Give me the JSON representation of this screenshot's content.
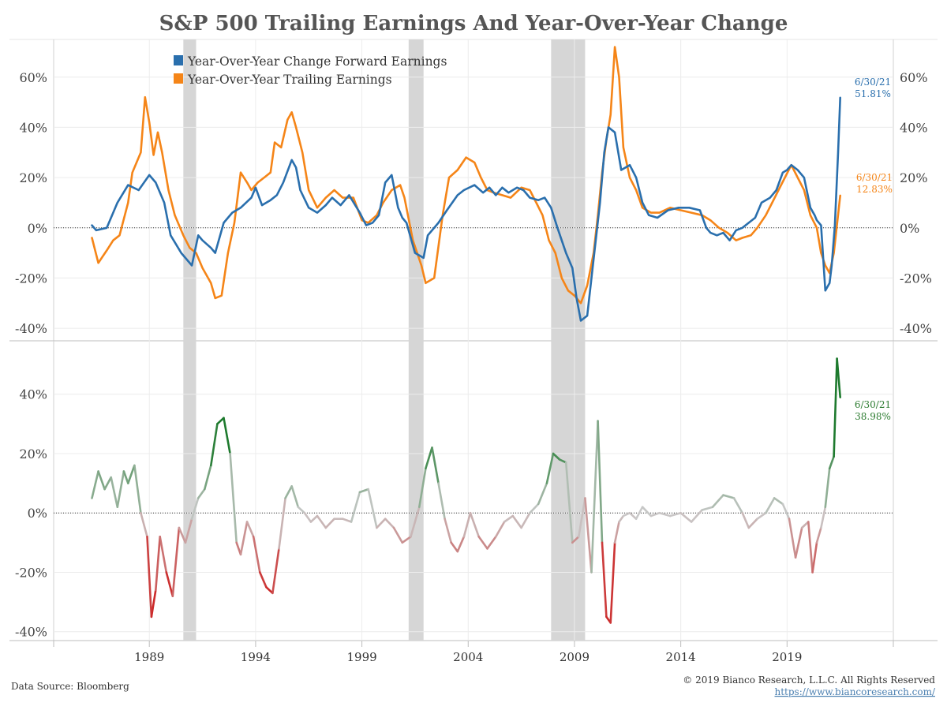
{
  "chart_data": [
    {
      "type": "line",
      "title": "S&P 500 Trailing Earnings And Year-Over-Year Change",
      "ylim": [
        -45,
        75
      ],
      "yticks": [
        -40,
        -20,
        0,
        20,
        40,
        60
      ],
      "yticklabels": [
        "-40%",
        "-20%",
        "0%",
        "20%",
        "40%",
        "60%"
      ],
      "xlim": [
        1984.5,
        2024
      ],
      "xticks": [
        1989,
        1994,
        1999,
        2004,
        2009,
        2014,
        2019
      ],
      "xticklabels": [
        "1989",
        "1994",
        "1999",
        "2004",
        "2009",
        "2014",
        "2019"
      ],
      "legend_position": "top-left",
      "recessions": [
        [
          1990.6,
          1991.2
        ],
        [
          2001.2,
          2001.9
        ],
        [
          2007.9,
          2009.5
        ]
      ],
      "series": [
        {
          "name": "Year-Over-Year Change Forward Earnings",
          "color": "#2a6fad",
          "x": [
            1986.3,
            1986.5,
            1987.0,
            1987.5,
            1988.0,
            1988.5,
            1989.0,
            1989.3,
            1989.7,
            1990.0,
            1990.5,
            1991.0,
            1991.3,
            1991.5,
            1991.9,
            1992.1,
            1992.5,
            1992.9,
            1993.3,
            1993.8,
            1994.0,
            1994.3,
            1994.7,
            1995.0,
            1995.3,
            1995.7,
            1995.9,
            1996.1,
            1996.5,
            1996.9,
            1997.3,
            1997.6,
            1998.0,
            1998.4,
            1998.9,
            1999.2,
            1999.5,
            1999.8,
            2000.1,
            2000.4,
            2000.7,
            2000.9,
            2001.1,
            2001.5,
            2001.9,
            2002.1,
            2002.6,
            2003.0,
            2003.5,
            2003.8,
            2004.3,
            2004.7,
            2005.0,
            2005.3,
            2005.6,
            2005.9,
            2006.3,
            2006.6,
            2006.9,
            2007.3,
            2007.6,
            2007.9,
            2008.2,
            2008.6,
            2008.9,
            2009.1,
            2009.3,
            2009.6,
            2009.8,
            2010.0,
            2010.2,
            2010.4,
            2010.6,
            2010.9,
            2011.2,
            2011.6,
            2011.9,
            2012.2,
            2012.5,
            2012.9,
            2013.4,
            2013.9,
            2014.4,
            2014.9,
            2015.2,
            2015.4,
            2015.7,
            2016.0,
            2016.3,
            2016.6,
            2016.9,
            2017.2,
            2017.5,
            2017.8,
            2018.2,
            2018.5,
            2018.8,
            2019.0,
            2019.2,
            2019.5,
            2019.8,
            2020.1,
            2020.3,
            2020.4,
            2020.6,
            2020.8,
            2021.0,
            2021.1,
            2021.25,
            2021.4,
            2021.5
          ],
          "values": [
            1,
            -1,
            0,
            10,
            17,
            15,
            21,
            18,
            10,
            -3,
            -10,
            -15,
            -3,
            -5,
            -8,
            -10,
            2,
            6,
            8,
            12,
            16,
            9,
            11,
            13,
            18,
            27,
            24,
            15,
            8,
            6,
            9,
            12,
            9,
            13,
            6,
            1,
            2,
            5,
            18,
            21,
            8,
            4,
            2,
            -10,
            -12,
            -3,
            2,
            7,
            13,
            15,
            17,
            14,
            16,
            13,
            16,
            14,
            16,
            15,
            12,
            11,
            12,
            8,
            0,
            -10,
            -16,
            -28,
            -37,
            -35,
            -20,
            -5,
            10,
            30,
            40,
            38,
            23,
            25,
            20,
            10,
            5,
            4,
            7,
            8,
            8,
            7,
            0,
            -2,
            -3,
            -2,
            -5,
            -1,
            0,
            2,
            4,
            10,
            12,
            15,
            22,
            23,
            25,
            23,
            20,
            8,
            5,
            3,
            1,
            -25,
            -22,
            -15,
            1,
            30,
            51.81
          ]
        },
        {
          "name": "Year-Over-Year Trailing Earnings",
          "color": "#f58518",
          "x": [
            1986.3,
            1986.6,
            1987.0,
            1987.3,
            1987.6,
            1988.0,
            1988.2,
            1988.6,
            1988.8,
            1989.0,
            1989.2,
            1989.4,
            1989.6,
            1989.9,
            1990.2,
            1990.6,
            1990.9,
            1991.2,
            1991.5,
            1991.9,
            1992.1,
            1992.4,
            1992.7,
            1993.0,
            1993.3,
            1993.6,
            1993.8,
            1994.1,
            1994.4,
            1994.7,
            1994.9,
            1995.2,
            1995.5,
            1995.7,
            1995.9,
            1996.2,
            1996.5,
            1996.9,
            1997.3,
            1997.7,
            1998.1,
            1998.6,
            1999.0,
            1999.3,
            1999.7,
            2000.0,
            2000.4,
            2000.8,
            2001.0,
            2001.4,
            2001.8,
            2002.0,
            2002.4,
            2002.8,
            2003.1,
            2003.5,
            2003.9,
            2004.3,
            2004.6,
            2004.9,
            2005.2,
            2005.6,
            2006.0,
            2006.5,
            2006.9,
            2007.2,
            2007.5,
            2007.8,
            2008.1,
            2008.4,
            2008.7,
            2009.0,
            2009.3,
            2009.6,
            2009.9,
            2010.1,
            2010.3,
            2010.5,
            2010.7,
            2010.9,
            2011.1,
            2011.3,
            2011.6,
            2011.9,
            2012.2,
            2012.6,
            2013.0,
            2013.5,
            2014.0,
            2014.5,
            2015.0,
            2015.4,
            2015.8,
            2016.2,
            2016.6,
            2016.9,
            2017.3,
            2017.6,
            2018.0,
            2018.3,
            2018.6,
            2018.9,
            2019.2,
            2019.5,
            2019.8,
            2020.1,
            2020.4,
            2020.6,
            2020.8,
            2021.0,
            2021.2,
            2021.5
          ],
          "values": [
            -4,
            -14,
            -9,
            -5,
            -3,
            10,
            22,
            30,
            52,
            42,
            29,
            38,
            30,
            15,
            5,
            -3,
            -8,
            -10,
            -16,
            -22,
            -28,
            -27,
            -10,
            2,
            22,
            18,
            15,
            18,
            20,
            22,
            34,
            32,
            43,
            46,
            40,
            30,
            15,
            8,
            12,
            15,
            12,
            12,
            3,
            2,
            5,
            10,
            15,
            17,
            12,
            -5,
            -15,
            -22,
            -20,
            5,
            20,
            23,
            28,
            26,
            20,
            15,
            14,
            13,
            12,
            16,
            15,
            10,
            5,
            -5,
            -10,
            -20,
            -25,
            -27,
            -30,
            -23,
            -10,
            5,
            22,
            35,
            45,
            72,
            60,
            32,
            20,
            15,
            8,
            6,
            6,
            8,
            7,
            6,
            5,
            3,
            0,
            -2,
            -5,
            -4,
            -3,
            0,
            5,
            10,
            15,
            20,
            25,
            20,
            15,
            5,
            0,
            -10,
            -15,
            -18,
            -10,
            12.83
          ]
        }
      ],
      "annotations": [
        {
          "date": "6/30/21",
          "value_label": "51.81%",
          "color": "#2a6fad"
        },
        {
          "date": "6/30/21",
          "value_label": "12.83%",
          "color": "#f58518"
        }
      ]
    },
    {
      "type": "line",
      "ylim": [
        -43,
        58
      ],
      "yticks": [
        -40,
        -20,
        0,
        20,
        40
      ],
      "yticklabels": [
        "-40%",
        "-20%",
        "0%",
        "20%",
        "40%"
      ],
      "color_scale": {
        "positive": "#1e7a2e",
        "neutral": "#c9c9c9",
        "negative": "#cc2b2b"
      },
      "series": [
        {
          "name": "",
          "x": [
            1986.3,
            1986.6,
            1986.9,
            1987.2,
            1987.5,
            1987.8,
            1988.0,
            1988.3,
            1988.6,
            1988.9,
            1989.1,
            1989.3,
            1989.5,
            1989.8,
            1990.1,
            1990.4,
            1990.7,
            1991.0,
            1991.3,
            1991.6,
            1991.9,
            1992.2,
            1992.5,
            1992.8,
            1993.1,
            1993.3,
            1993.6,
            1993.9,
            1994.2,
            1994.5,
            1994.8,
            1995.1,
            1995.4,
            1995.7,
            1996.0,
            1996.3,
            1996.6,
            1996.9,
            1997.3,
            1997.7,
            1998.1,
            1998.5,
            1998.9,
            1999.3,
            1999.7,
            2000.1,
            2000.5,
            2000.9,
            2001.3,
            2001.7,
            2002.0,
            2002.3,
            2002.6,
            2002.9,
            2003.2,
            2003.5,
            2003.8,
            2004.1,
            2004.5,
            2004.9,
            2005.3,
            2005.7,
            2006.1,
            2006.5,
            2006.9,
            2007.3,
            2007.7,
            2008.0,
            2008.3,
            2008.6,
            2008.9,
            2009.2,
            2009.5,
            2009.8,
            2010.1,
            2010.3,
            2010.5,
            2010.7,
            2010.9,
            2011.1,
            2011.3,
            2011.6,
            2011.9,
            2012.2,
            2012.6,
            2013.0,
            2013.5,
            2014.0,
            2014.5,
            2015.0,
            2015.5,
            2016.0,
            2016.5,
            2016.9,
            2017.2,
            2017.6,
            2018.0,
            2018.4,
            2018.8,
            2019.1,
            2019.4,
            2019.7,
            2020.0,
            2020.2,
            2020.4,
            2020.6,
            2020.8,
            2021.0,
            2021.2,
            2021.35,
            2021.5
          ],
          "values": [
            5,
            14,
            8,
            12,
            2,
            14,
            10,
            16,
            0,
            -8,
            -35,
            -26,
            -8,
            -20,
            -28,
            -5,
            -10,
            -2,
            5,
            8,
            16,
            30,
            32,
            20,
            -10,
            -14,
            -3,
            -8,
            -20,
            -25,
            -27,
            -12,
            5,
            9,
            2,
            0,
            -3,
            -1,
            -5,
            -2,
            -2,
            -3,
            7,
            8,
            -5,
            -2,
            -5,
            -10,
            -8,
            2,
            15,
            22,
            10,
            -2,
            -10,
            -13,
            -8,
            0,
            -8,
            -12,
            -8,
            -3,
            -1,
            -5,
            0,
            3,
            10,
            20,
            18,
            17,
            -10,
            -8,
            5,
            -20,
            31,
            -10,
            -35,
            -37,
            -10,
            -3,
            -1,
            0,
            -2,
            2,
            -1,
            0,
            -1,
            0,
            -3,
            1,
            2,
            6,
            5,
            0,
            -5,
            -2,
            0,
            5,
            3,
            -2,
            -15,
            -5,
            -3,
            -20,
            -10,
            -5,
            2,
            15,
            19,
            52,
            38.98
          ]
        }
      ],
      "annotations": [
        {
          "date": "6/30/21",
          "value_label": "38.98%",
          "color": "#2e7d32"
        }
      ]
    }
  ],
  "footer": {
    "source": "Data Source: Bloomberg",
    "copyright": "© 2019 Bianco Research, L.L.C. All Rights Reserved",
    "url": "https://www.biancoresearch.com/"
  }
}
